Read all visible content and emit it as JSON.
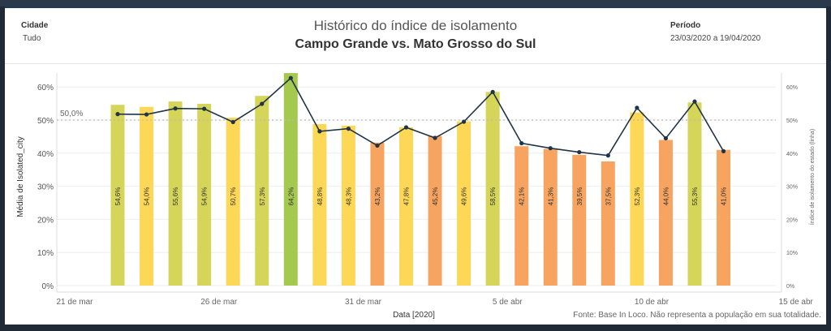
{
  "header": {
    "cidade_label": "Cidade",
    "cidade_value": "Tudo",
    "title": "Histórico do índice de isolamento",
    "subtitle": "Campo Grande vs. Mato Grosso do Sul",
    "periodo_label": "Período",
    "periodo_value": "23/03/2020 a 19/04/2020"
  },
  "footer": {
    "source": "Fonte: Base In Loco. Não representa a população em sua totalidade."
  },
  "colors": {
    "dark_green": "#a5c94f",
    "green": "#d5d55a",
    "yellow": "#fdd756",
    "orange": "#f6a45f",
    "line": "#1f3447",
    "grid": "#eeeeee",
    "reference": "#bbbbbb"
  },
  "chart_data": {
    "type": "bar",
    "xlabel": "Data [2020]",
    "ylabel": "Média de Isolated_city",
    "y2label": "Índice de isolamento do estado (linha)",
    "ylim": [
      0,
      65
    ],
    "y_ticks": [
      "0%",
      "10%",
      "20%",
      "30%",
      "40%",
      "50%",
      "60%"
    ],
    "y2_ticks": [
      "0%",
      "10%",
      "20%",
      "30%",
      "40%",
      "50%",
      "60%"
    ],
    "x_ticks": [
      "21 de mar",
      "26 de mar",
      "31 de mar",
      "5 de abr",
      "10 de abr",
      "15 de abr"
    ],
    "reference_line": {
      "value": 50,
      "label": "50,0%"
    },
    "bars": [
      {
        "value": 54.6,
        "label": "54,6%",
        "color": "green"
      },
      {
        "value": 54.0,
        "label": "54,0%",
        "color": "yellow"
      },
      {
        "value": 55.6,
        "label": "55,6%",
        "color": "green"
      },
      {
        "value": 54.9,
        "label": "54,9%",
        "color": "green"
      },
      {
        "value": 50.7,
        "label": "50,7%",
        "color": "yellow"
      },
      {
        "value": 57.3,
        "label": "57,3%",
        "color": "green"
      },
      {
        "value": 64.2,
        "label": "64,2%",
        "color": "dark_green"
      },
      {
        "value": 48.8,
        "label": "48,8%",
        "color": "yellow"
      },
      {
        "value": 48.3,
        "label": "48,3%",
        "color": "yellow"
      },
      {
        "value": 43.2,
        "label": "43,2%",
        "color": "orange"
      },
      {
        "value": 47.8,
        "label": "47,8%",
        "color": "yellow"
      },
      {
        "value": 45.2,
        "label": "45,2%",
        "color": "orange"
      },
      {
        "value": 49.6,
        "label": "49,6%",
        "color": "yellow"
      },
      {
        "value": 58.5,
        "label": "58,5%",
        "color": "green"
      },
      {
        "value": 42.1,
        "label": "42,1%",
        "color": "orange"
      },
      {
        "value": 41.3,
        "label": "41,3%",
        "color": "orange"
      },
      {
        "value": 39.5,
        "label": "39,5%",
        "color": "orange"
      },
      {
        "value": 37.5,
        "label": "37,5%",
        "color": "orange"
      },
      {
        "value": 52.3,
        "label": "52,3%",
        "color": "yellow"
      },
      {
        "value": 44.0,
        "label": "44,0%",
        "color": "orange"
      },
      {
        "value": 55.3,
        "label": "55,3%",
        "color": "green"
      },
      {
        "value": 41.0,
        "label": "41,0%",
        "color": "orange"
      }
    ],
    "line_values": [
      51.8,
      51.7,
      53.5,
      53.4,
      49.4,
      54.9,
      62.7,
      46.6,
      47.4,
      42.3,
      47.8,
      44.6,
      49.5,
      58.5,
      43.0,
      41.5,
      40.3,
      39.3,
      53.7,
      44.5,
      55.6,
      40.6
    ]
  }
}
